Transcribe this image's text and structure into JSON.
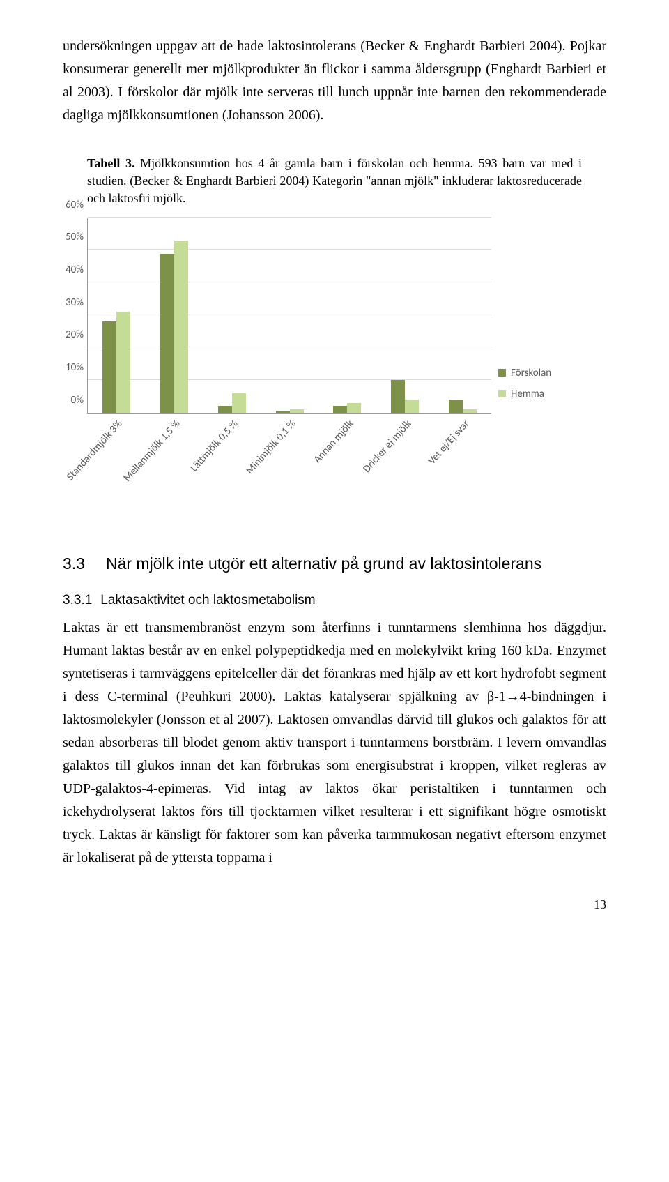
{
  "paragraph_top": "undersökningen uppgav att de hade laktosintolerans (Becker & Enghardt Barbieri 2004). Pojkar konsumerar generellt mer mjölkprodukter än flickor i samma åldersgrupp (Enghardt Barbieri et al 2003). I förskolor där mjölk inte serveras till lunch uppnår inte barnen den rekommenderade dagliga mjölkkonsumtionen (Johansson 2006).",
  "table_caption": {
    "label": "Tabell 3.",
    "text": " Mjölkkonsumtion hos 4 år gamla barn i förskolan och hemma. 593 barn var med i studien. (Becker & Enghardt Barbieri 2004) Kategorin \"annan mjölk\" inkluderar laktosreducerade och laktosfri mjölk."
  },
  "chart": {
    "type": "bar",
    "ymax": 60,
    "ytick_step": 10,
    "ytick_labels": [
      "0%",
      "10%",
      "20%",
      "30%",
      "40%",
      "50%",
      "60%"
    ],
    "categories": [
      "Standardmjölk 3%",
      "Mellanmjölk 1,5 %",
      "Lättmjölk 0,5 %",
      "Minimjölk 0,1 %",
      "Annan mjölk",
      "Dricker ej mjölk",
      "Vet ej/Ej svar"
    ],
    "series": [
      {
        "name": "Förskolan",
        "color": "#7d9149",
        "values": [
          28,
          49,
          2,
          0.5,
          2,
          10,
          4
        ]
      },
      {
        "name": "Hemma",
        "color": "#c5dc97",
        "values": [
          31,
          53,
          6,
          1,
          3,
          4,
          1
        ]
      }
    ],
    "grid_color": "#dcdcdc",
    "axis_text_color": "#595959",
    "background_color": "#ffffff",
    "xlabel_fontsize": 15,
    "ylabel_fontsize": 15
  },
  "section": {
    "number": "3.3",
    "title": "När mjölk inte utgör ett alternativ på grund av laktosintolerans"
  },
  "subsection": {
    "number": "3.3.1",
    "title": "Laktasaktivitet och laktosmetabolism"
  },
  "paragraph_bottom": "Laktas är ett transmembranöst enzym som återfinns i tunntarmens slemhinna hos däggdjur. Humant laktas består av en enkel polypeptidkedja med en molekylvikt kring 160 kDa. Enzymet syntetiseras i tarmväggens epitelceller där det förankras med hjälp av ett kort hydrofobt segment i dess C-terminal (Peuhkuri 2000). Laktas katalyserar spjälkning av β-1→4-bindningen i laktosmolekyler (Jonsson et al 2007). Laktosen omvandlas därvid till glukos och galaktos för att sedan absorberas till blodet genom aktiv transport i tunntarmens borstbräm. I levern omvandlas galaktos till glukos innan det kan förbrukas som energisubstrat i kroppen, vilket regleras av UDP-galaktos-4-epimeras. Vid intag av laktos ökar peristaltiken i tunntarmen och ickehydrolyserat laktos förs till tjocktarmen vilket resulterar i ett signifikant högre osmotiskt tryck. Laktas är känsligt för faktorer som kan påverka tarmmukosan negativt eftersom enzymet är lokaliserat på de yttersta topparna i",
  "page_number": "13"
}
